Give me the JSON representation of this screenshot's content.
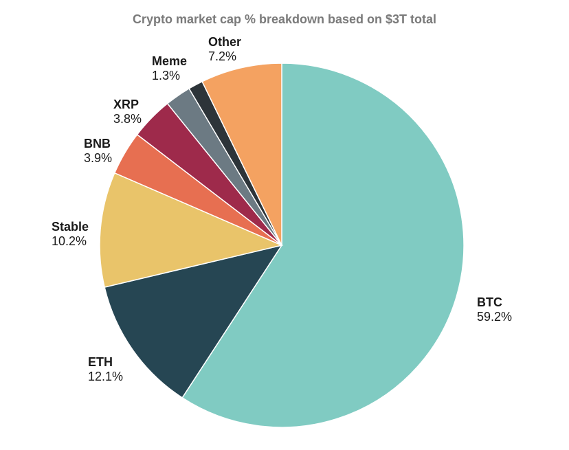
{
  "chart_data": {
    "type": "pie",
    "title": "Crypto market cap % breakdown based on $3T total",
    "slices": [
      {
        "name": "BTC",
        "value": 59.2,
        "label": "59.2%",
        "color": "#80cbc2"
      },
      {
        "name": "ETH",
        "value": 12.1,
        "label": "12.1%",
        "color": "#264653"
      },
      {
        "name": "Stable",
        "value": 10.2,
        "label": "10.2%",
        "color": "#e9c46a"
      },
      {
        "name": "BNB",
        "value": 3.9,
        "label": "3.9%",
        "color": "#e76f51"
      },
      {
        "name": "XRP",
        "value": 3.8,
        "label": "3.8%",
        "color": "#9e2a4b"
      },
      {
        "name": "Meme",
        "value": 1.3,
        "label": "1.3%",
        "color": "#2d3439"
      },
      {
        "name": "Other",
        "value": 7.2,
        "label": "7.2%",
        "color": "#f4a261"
      }
    ],
    "extra_slice_color": "#6c7a83",
    "start_angle": "12 o'clock",
    "direction": "clockwise"
  }
}
